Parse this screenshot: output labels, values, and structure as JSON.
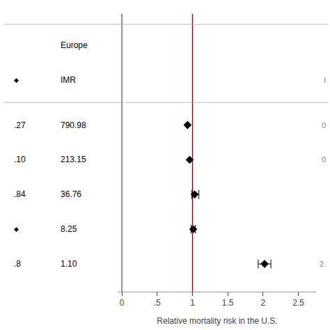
{
  "chart_data": {
    "type": "forest",
    "xlabel": "Relative mortality risk in the U.S.",
    "xlim": [
      -0.05,
      2.75
    ],
    "xticks": [
      0,
      {
        "value": 0.5,
        "label": ".5"
      },
      1,
      1.5,
      2,
      2.5
    ],
    "grid": false,
    "marker": "diamond",
    "color": "#000000",
    "header": [
      {
        "imr": "Europe"
      },
      {
        "left": "◆",
        "imr": "IMR",
        "right": "I"
      }
    ],
    "rows": [
      {
        "left": ".27",
        "imr": "790.98",
        "right": "0",
        "value": 0.93,
        "ci_lo": 0.93,
        "ci_hi": 0.93
      },
      {
        "left": ".10",
        "imr": "213.15",
        "right": "0",
        "value": 0.96,
        "ci_lo": 0.96,
        "ci_hi": 0.96
      },
      {
        "left": ".84",
        "imr": "36.76",
        "value": 1.03,
        "ci_lo": 0.99,
        "ci_hi": 1.09
      },
      {
        "left": "◆",
        "imr": "8.25",
        "value": 1.01,
        "ci_lo": 0.98,
        "ci_hi": 1.04
      },
      {
        "left": ".8",
        "imr": "1.10",
        "right": "2.",
        "value": 2.02,
        "ci_lo": 1.93,
        "ci_hi": 2.11
      }
    ],
    "reference_lines": [
      {
        "x": 0,
        "color": "#555555"
      },
      {
        "x": 1.0,
        "color": "#8B0000"
      }
    ]
  }
}
